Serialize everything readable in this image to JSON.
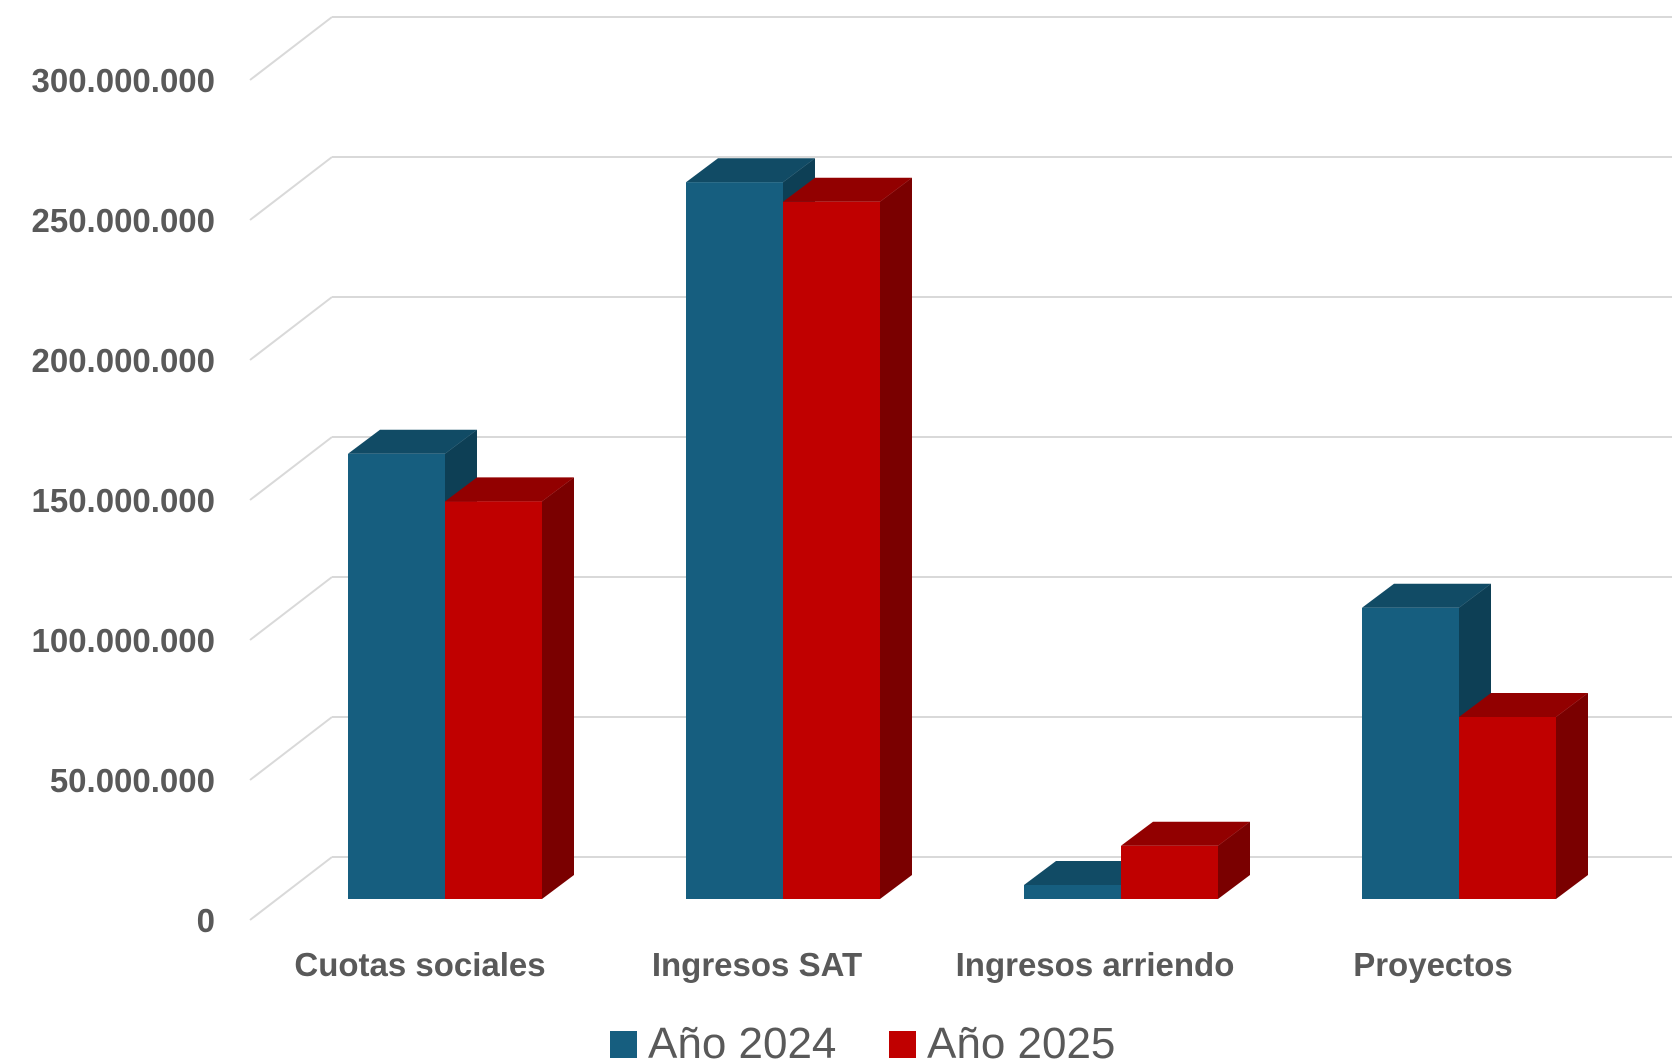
{
  "chart_data": {
    "type": "bar",
    "style": "3d-clustered-column",
    "title": "",
    "xlabel": "",
    "ylabel": "",
    "categories": [
      "Cuotas sociales",
      "Ingresos SAT",
      "Ingresos arriendo",
      "Proyectos"
    ],
    "series": [
      {
        "name": "Año 2024",
        "values": [
          159000000,
          256000000,
          5000000,
          104000000
        ],
        "color": "#165E7F",
        "side_color": "#0D3F55",
        "top_color": "#114B65"
      },
      {
        "name": "Año 2025",
        "values": [
          142000000,
          249000000,
          19000000,
          65000000
        ],
        "color": "#C00000",
        "side_color": "#7A0000",
        "top_color": "#920000"
      }
    ],
    "ylim": [
      0,
      300000000
    ],
    "yticks": [
      0,
      50000000,
      100000000,
      150000000,
      200000000,
      250000000,
      300000000
    ],
    "ytick_labels": [
      "0",
      "50.000.000",
      "100.000.000",
      "150.000.000",
      "200.000.000",
      "250.000.000",
      "300.000.000"
    ],
    "grid": true,
    "gridline_color": "#D9D9D9",
    "legend_position": "bottom"
  }
}
